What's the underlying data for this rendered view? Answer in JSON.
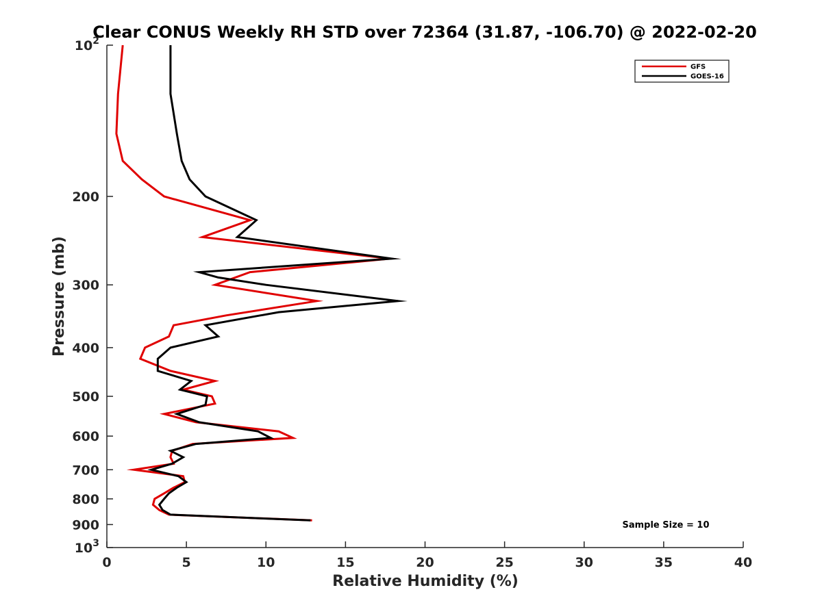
{
  "chart_data": {
    "type": "line",
    "title": "Clear CONUS Weekly RH STD over 72364 (31.87, -106.70) @ 2022-02-20",
    "xlabel": "Relative Humidity (%)",
    "ylabel": "Pressure (mb)",
    "xlim": [
      0,
      40
    ],
    "ylim": [
      100,
      1000
    ],
    "y_scale": "log",
    "y_reversed": true,
    "x_ticks": [
      0,
      5,
      10,
      15,
      20,
      25,
      30,
      35,
      40
    ],
    "x_tick_labels": [
      "0",
      "5",
      "10",
      "15",
      "20",
      "25",
      "30",
      "35",
      "40"
    ],
    "y_ticks": [
      100,
      200,
      300,
      400,
      500,
      600,
      700,
      800,
      900,
      1000
    ],
    "y_tick_labels": [
      {
        "base": "10",
        "exp": "2"
      },
      {
        "base": "200"
      },
      {
        "base": "300"
      },
      {
        "base": "400"
      },
      {
        "base": "500"
      },
      {
        "base": "600"
      },
      {
        "base": "700"
      },
      {
        "base": "800"
      },
      {
        "base": "900"
      },
      {
        "base": "10",
        "exp": "3"
      }
    ],
    "grid": false,
    "legend_position": "top-right",
    "annotation": "Sample Size = 10",
    "series": [
      {
        "name": "GFS",
        "color": "#e00000",
        "points": [
          [
            1.0,
            100
          ],
          [
            0.7,
            125
          ],
          [
            0.6,
            150
          ],
          [
            1.0,
            170
          ],
          [
            2.2,
            185
          ],
          [
            3.6,
            200
          ],
          [
            9.0,
            223
          ],
          [
            6.0,
            241
          ],
          [
            17.8,
            266
          ],
          [
            9.0,
            283
          ],
          [
            6.8,
            300
          ],
          [
            13.2,
            323
          ],
          [
            7.5,
            345
          ],
          [
            4.2,
            361
          ],
          [
            3.9,
            380
          ],
          [
            2.4,
            400
          ],
          [
            2.1,
            421
          ],
          [
            4.0,
            445
          ],
          [
            6.8,
            466
          ],
          [
            4.8,
            485
          ],
          [
            6.6,
            500
          ],
          [
            6.8,
            517
          ],
          [
            3.6,
            542
          ],
          [
            5.6,
            563
          ],
          [
            10.8,
            587
          ],
          [
            11.7,
            605
          ],
          [
            5.4,
            622
          ],
          [
            4.1,
            642
          ],
          [
            4.0,
            661
          ],
          [
            4.2,
            681
          ],
          [
            1.7,
            700
          ],
          [
            4.8,
            721
          ],
          [
            4.9,
            741
          ],
          [
            4.2,
            760
          ],
          [
            3.6,
            780
          ],
          [
            3.0,
            800
          ],
          [
            2.9,
            822
          ],
          [
            3.3,
            842
          ],
          [
            3.9,
            860
          ],
          [
            12.9,
            883
          ]
        ]
      },
      {
        "name": "GOES-16",
        "color": "#000000",
        "points": [
          [
            4.0,
            100
          ],
          [
            4.0,
            125
          ],
          [
            4.4,
            150
          ],
          [
            4.7,
            170
          ],
          [
            5.2,
            185
          ],
          [
            6.2,
            200
          ],
          [
            9.4,
            223
          ],
          [
            8.2,
            241
          ],
          [
            17.9,
            266
          ],
          [
            5.8,
            283
          ],
          [
            7.0,
            290
          ],
          [
            10.0,
            300
          ],
          [
            18.3,
            323
          ],
          [
            10.8,
            340
          ],
          [
            6.2,
            361
          ],
          [
            7.0,
            380
          ],
          [
            4.0,
            400
          ],
          [
            3.2,
            421
          ],
          [
            3.2,
            445
          ],
          [
            5.3,
            466
          ],
          [
            4.6,
            485
          ],
          [
            6.3,
            500
          ],
          [
            6.2,
            520
          ],
          [
            4.4,
            542
          ],
          [
            5.8,
            563
          ],
          [
            9.5,
            587
          ],
          [
            10.3,
            605
          ],
          [
            5.6,
            622
          ],
          [
            4.0,
            642
          ],
          [
            4.8,
            661
          ],
          [
            4.1,
            681
          ],
          [
            2.8,
            700
          ],
          [
            4.5,
            721
          ],
          [
            5.0,
            741
          ],
          [
            4.4,
            760
          ],
          [
            3.9,
            780
          ],
          [
            3.6,
            800
          ],
          [
            3.3,
            822
          ],
          [
            3.5,
            842
          ],
          [
            4.0,
            860
          ],
          [
            12.8,
            883
          ]
        ]
      }
    ]
  }
}
